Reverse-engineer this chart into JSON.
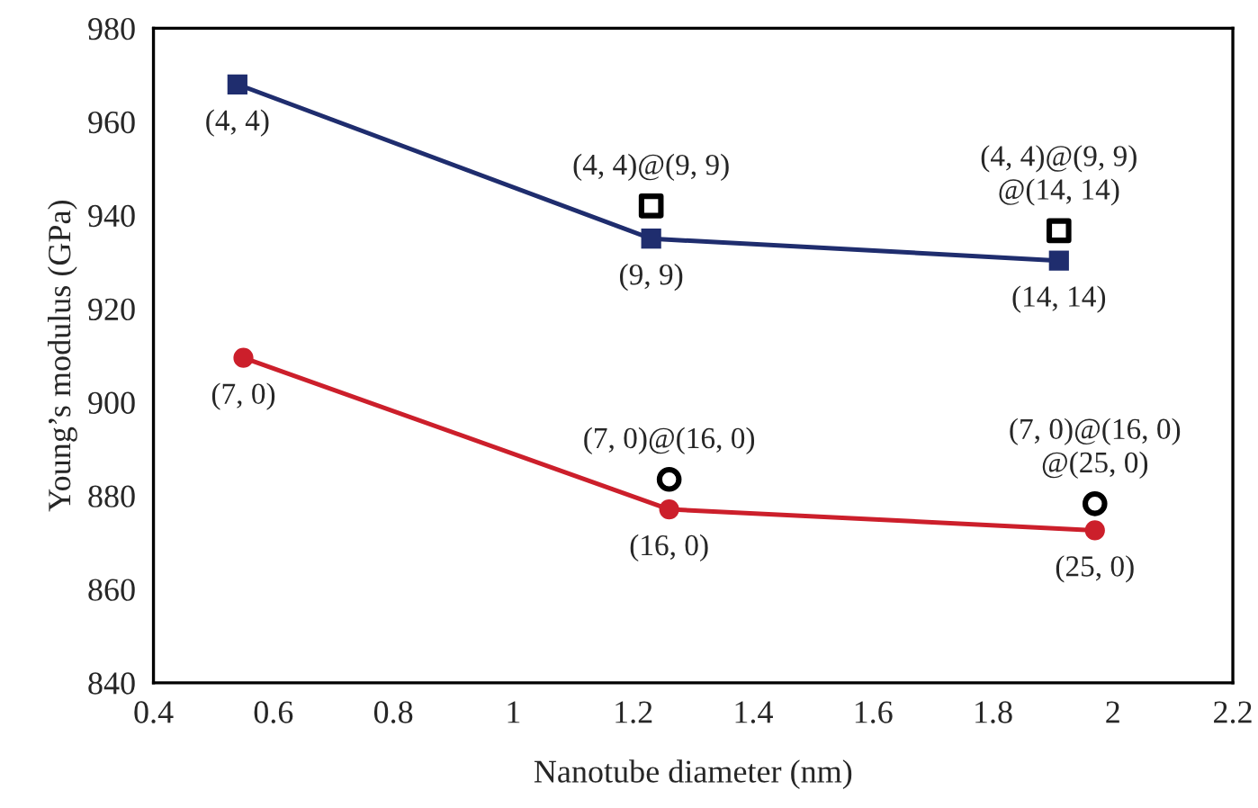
{
  "chart_data": {
    "type": "line",
    "xlabel": "Nanotube diameter (nm)",
    "ylabel": "Young’s modulus (GPa)",
    "xlim": [
      0.4,
      2.2
    ],
    "xticks": [
      0.4,
      0.6,
      0.8,
      1,
      1.2,
      1.4,
      1.6,
      1.8,
      2,
      2.2
    ],
    "ylim": [
      840,
      980
    ],
    "yticks": [
      840,
      860,
      880,
      900,
      920,
      940,
      960,
      980
    ],
    "grid": false,
    "legend": false,
    "series": [
      {
        "marker": "square",
        "color": "#1f2d6e",
        "x": [
          0.54,
          1.23,
          1.91
        ],
        "values": [
          968,
          935,
          930.3
        ],
        "value_labels": [
          "(4, 4)",
          "(9, 9)",
          "(14, 14)"
        ]
      },
      {
        "type": "scatter",
        "marker": "square",
        "color": "#000000",
        "x": [
          1.23,
          1.91
        ],
        "values": [
          942,
          936.7
        ],
        "value_labels": [
          "(4, 4)@(9, 9)",
          "(4, 4)@(9, 9)\n@(14, 14)"
        ]
      },
      {
        "marker": "circle",
        "color": "#cc1f2b",
        "x": [
          0.55,
          1.26,
          1.97
        ],
        "values": [
          909.5,
          877.1,
          872.6
        ],
        "value_labels": [
          "(7, 0)",
          "(16, 0)",
          "(25, 0)"
        ]
      },
      {
        "type": "scatter",
        "marker": "circle",
        "color": "#000000",
        "x": [
          1.26,
          1.97
        ],
        "values": [
          883.5,
          878.3
        ],
        "value_labels": [
          "(7, 0)@(16, 0)",
          "(7, 0)@(16, 0)\n@(25, 0)"
        ]
      }
    ]
  }
}
